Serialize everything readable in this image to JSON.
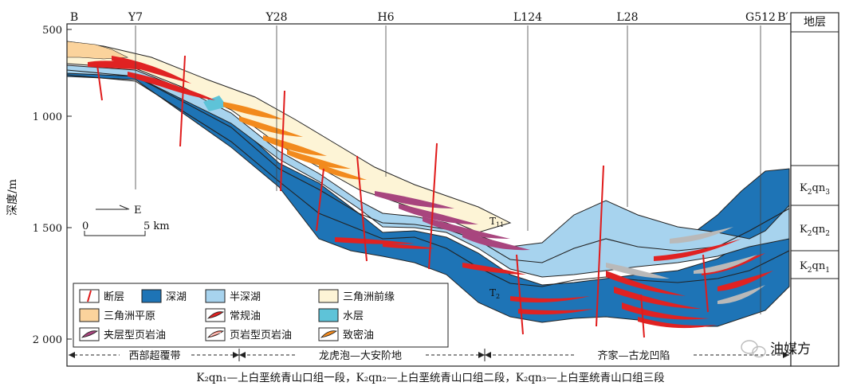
{
  "wells": [
    "B",
    "Y7",
    "Y28",
    "H6",
    "L124",
    "L28",
    "G512",
    "B′"
  ],
  "strata_header": "地层",
  "y_axis": {
    "label": "深度/m",
    "ticks": [
      "500",
      "1 000",
      "1 500",
      "2 000"
    ]
  },
  "formations": [
    {
      "main": "K",
      "sub1": "2",
      "mid": "qn",
      "sub2": "3"
    },
    {
      "main": "K",
      "sub1": "2",
      "mid": "qn",
      "sub2": "2"
    },
    {
      "main": "K",
      "sub1": "2",
      "mid": "qn",
      "sub2": "1"
    }
  ],
  "orientation": "E",
  "scale": {
    "start": "0",
    "end": "5 km"
  },
  "markers": {
    "t11": "T",
    "t11_sub": "11",
    "t2": "T",
    "t2_sub": "2"
  },
  "legend": [
    {
      "label": "断层",
      "icon": "fault-icon"
    },
    {
      "label": "深湖",
      "icon": "deep-lake-swatch",
      "color": "#1e74b6"
    },
    {
      "label": "半深湖",
      "icon": "semi-deep-lake-swatch",
      "color": "#a7d3ee"
    },
    {
      "label": "三角洲前缘",
      "icon": "delta-front-swatch",
      "color": "#fdf4d6"
    },
    {
      "label": "三角洲平原",
      "icon": "delta-plain-swatch",
      "color": "#fbd39c"
    },
    {
      "label": "常规油",
      "icon": "conventional-oil-icon",
      "color": "#e02222"
    },
    {
      "label": "水层",
      "icon": "water-layer-swatch",
      "color": "#5ec3d8"
    },
    {
      "label": "夹层型页岩油",
      "icon": "interlayer-shale-oil-icon",
      "color": "#a8457e"
    },
    {
      "label": "页岩型页岩油",
      "icon": "shale-type-shale-oil-icon",
      "color": "#e96d5e"
    },
    {
      "label": "致密油",
      "icon": "tight-oil-icon",
      "color": "#f28a1d"
    }
  ],
  "zones": [
    "西部超覆带",
    "龙虎泡—大安阶地",
    "齐家—古龙凹陷"
  ],
  "watermark": "油媒方",
  "caption": "K₂qn₁—上白垩统青山口组一段，K₂qn₂—上白垩统青山口组二段，K₂qn₃—上白垩统青山口组三段"
}
